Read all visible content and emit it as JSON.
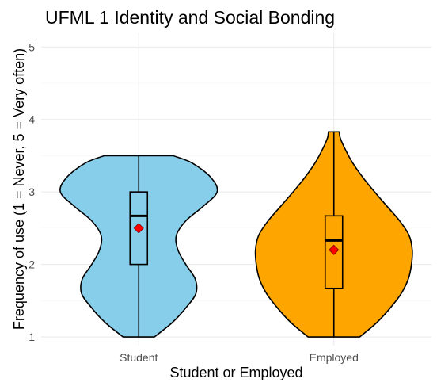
{
  "chart_data": {
    "type": "violin",
    "title": "UFML 1 Identity and Social Bonding",
    "xlabel": "Student or Employed",
    "ylabel": "Frequency of use (1 = Never, 5 = Very often)",
    "categories": [
      "Student",
      "Employed"
    ],
    "yticks": [
      1,
      2,
      3,
      4,
      5
    ],
    "ylim": [
      1,
      5
    ],
    "grid": true,
    "legend": "none",
    "colors": {
      "Student": "#87CEEB",
      "Employed": "#FFA500",
      "mean_marker": "#FF0000",
      "outline": "#000000"
    },
    "series": [
      {
        "category": "Student",
        "density_width_profile": [
          [
            1.0,
            0.2
          ],
          [
            1.2,
            0.43
          ],
          [
            1.4,
            0.6
          ],
          [
            1.6,
            0.73
          ],
          [
            1.8,
            0.72
          ],
          [
            2.0,
            0.6
          ],
          [
            2.2,
            0.5
          ],
          [
            2.4,
            0.48
          ],
          [
            2.6,
            0.6
          ],
          [
            2.8,
            0.82
          ],
          [
            3.0,
            1.0
          ],
          [
            3.2,
            0.92
          ],
          [
            3.4,
            0.68
          ],
          [
            3.5,
            0.44
          ]
        ],
        "ymin": 1.0,
        "ymax": 3.5,
        "box": {
          "q1": 2.0,
          "median": 2.67,
          "q3": 3.0,
          "whisker_low": 1.0,
          "whisker_high": 3.5
        },
        "mean": 2.5
      },
      {
        "category": "Employed",
        "density_width_profile": [
          [
            1.0,
            0.33
          ],
          [
            1.2,
            0.55
          ],
          [
            1.4,
            0.72
          ],
          [
            1.6,
            0.86
          ],
          [
            1.8,
            0.95
          ],
          [
            2.0,
            0.99
          ],
          [
            2.2,
            1.0
          ],
          [
            2.4,
            0.96
          ],
          [
            2.6,
            0.84
          ],
          [
            2.8,
            0.68
          ],
          [
            3.0,
            0.52
          ],
          [
            3.2,
            0.37
          ],
          [
            3.4,
            0.24
          ],
          [
            3.6,
            0.14
          ],
          [
            3.75,
            0.08
          ],
          [
            3.83,
            0.07
          ]
        ],
        "ymin": 1.0,
        "ymax": 3.83,
        "box": {
          "q1": 1.67,
          "median": 2.33,
          "q3": 2.67,
          "whisker_low": 1.0,
          "whisker_high": 3.83
        },
        "mean": 2.2
      }
    ]
  }
}
